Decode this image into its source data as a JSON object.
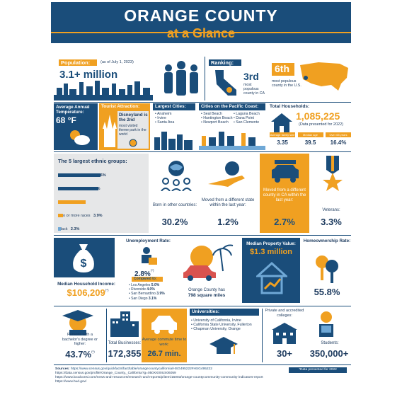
{
  "header": {
    "title": "ORANGE COUNTY",
    "subtitle": "at a Glance"
  },
  "population": {
    "label": "Population:",
    "asof": "(as of July 1, 2023)",
    "value": "3.1+ million"
  },
  "ranking": {
    "label": "Ranking:",
    "rank": "3rd",
    "desc": "most populous county in CA",
    "rank_us": "6th",
    "desc_us": "most populous county in the U.S."
  },
  "temperature": {
    "label": "Average Annual Temperature:",
    "value": "68 °F"
  },
  "attraction": {
    "label": "Tourist Attraction:",
    "name": "Disneyland is the 2nd",
    "desc": "most visited theme park in the world"
  },
  "largest_cities": {
    "label": "Largest Cities:",
    "items": [
      "• Anaheim",
      "• Irvine",
      "• Santa Ana"
    ]
  },
  "pacific_cities": {
    "label": "Cities on the Pacific Coast:",
    "col1": [
      "• Seal Beach",
      "• Huntington Beach",
      "• Newport Beach"
    ],
    "col2": [
      "• Laguna Beach",
      "• Dana Point",
      "• San Clemente"
    ]
  },
  "households": {
    "label": "Total Households:",
    "value": "1,085,225",
    "note": "(Data presented for 2022)",
    "stats": [
      {
        "label": "Average family size",
        "value": "3.35"
      },
      {
        "label": "Median age",
        "value": "39.5"
      },
      {
        "label": "Over 65 years",
        "value": "16.4%"
      }
    ]
  },
  "ethnic": {
    "title": "The 5 largest ethnic groups:",
    "groups": [
      {
        "label": "White (Non-Hispanic)",
        "pct": "36%",
        "value": 36
      },
      {
        "label": "Hispanic or Latino",
        "pct": "34%",
        "value": 34
      },
      {
        "label": "Asian",
        "pct": "23.3%",
        "value": 23.3
      },
      {
        "label": "Two or more races",
        "pct": "3.9%",
        "value": 3.9
      },
      {
        "label": "Black",
        "pct": "2.3%",
        "value": 2.3
      }
    ]
  },
  "migration": [
    {
      "label": "Born in other countries:",
      "value": "30.2%"
    },
    {
      "label": "Moved from a different state within the last year:",
      "value": "1.2%"
    },
    {
      "label": "Moved from a different county in CA within the last year:",
      "value": "2.7%"
    },
    {
      "label": "Veterans:",
      "value": "3.3%"
    }
  ],
  "income": {
    "label": "Median Household Income:",
    "value": "$106,209",
    "mark": "(*)"
  },
  "unemployment": {
    "label": "Unemployment Rate:",
    "value": "2.8%",
    "mark": "(*)",
    "compared": "Compared to:",
    "items": [
      {
        "city": "• Los Angeles",
        "pct": "5.0%"
      },
      {
        "city": "• Riverside",
        "pct": "4.0%"
      },
      {
        "city": "• San Bernardino",
        "pct": "3.9%"
      },
      {
        "city": "• San Diego",
        "pct": "3.1%"
      }
    ]
  },
  "area": {
    "text": "Orange County has",
    "value": "798 square miles"
  },
  "property": {
    "label": "Median Property Value:",
    "value": "$1.3 million"
  },
  "homeownership": {
    "label": "Homeownership Rate:",
    "value": "55.8%"
  },
  "education": {
    "label": "Persons with a bachelor's degree or higher:",
    "value": "43.7%",
    "mark": "(*)"
  },
  "businesses": {
    "label": "Total Businesses:",
    "value": "172,355"
  },
  "commute": {
    "label": "Average commute time to work:",
    "value": "26.7 min."
  },
  "universities": {
    "label": "Universities:",
    "items": [
      "• University of California, Irvine",
      "• California State University, Fullerton",
      "• Chapman University, Orange"
    ]
  },
  "colleges": {
    "label": "Private and accredited colleges:",
    "value": "30+"
  },
  "students": {
    "label": "Students:",
    "value": "350,000+"
  },
  "sources": {
    "label": "Sources:",
    "lines": [
      "https://www.census.gov/quickfacts/fact/table/orangecountycalifornia/HSG495222#HSG495222",
      "https://data.census.gov/profile/Orange_County,_California?g=050XX00US06059",
      "https://www.localconsi.com/news-and-resources/research-and-reports/p/item/15003/orange-countycommunity-community-indicators-report",
      "https://www.hud.gov/"
    ],
    "note": "*Data presented for 2022"
  },
  "colors": {
    "navy": "#1a4d7a",
    "orange": "#f0a021",
    "grey": "#e6e7e8"
  }
}
